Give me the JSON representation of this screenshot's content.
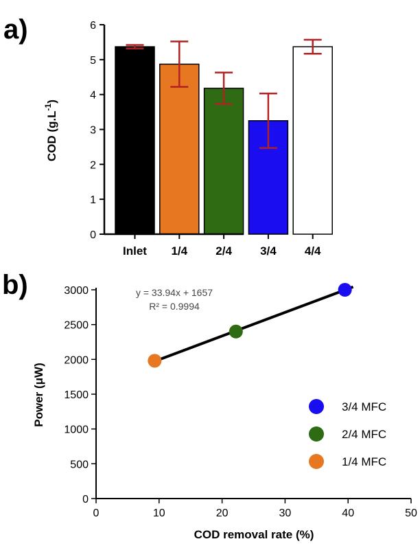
{
  "chart_data": [
    {
      "panel": "a)",
      "type": "bar",
      "title": "",
      "xlabel": "",
      "ylabel": "COD (g.L",
      "ylabel_sup": "-1",
      "ylabel_close": ")",
      "ylim": [
        0,
        6
      ],
      "yticks": [
        0,
        1,
        2,
        3,
        4,
        5,
        6
      ],
      "categories": [
        "Inlet",
        "1/4",
        "2/4",
        "3/4",
        "4/4"
      ],
      "values": [
        5.37,
        4.87,
        4.18,
        3.25,
        5.37
      ],
      "errors": [
        0.05,
        0.65,
        0.45,
        0.78,
        0.2
      ],
      "colors": [
        "#000000",
        "#e87722",
        "#2e6b12",
        "#1a0df0",
        "#ffffff"
      ],
      "error_color": "#b22222"
    },
    {
      "panel": "b)",
      "type": "scatter",
      "title": "",
      "xlabel": "COD removal rate  (%)",
      "ylabel": "Power (μW)",
      "xlim": [
        0,
        50
      ],
      "ylim": [
        0,
        3000
      ],
      "xticks": [
        0,
        10,
        20,
        30,
        40,
        50
      ],
      "yticks": [
        0,
        500,
        1000,
        1500,
        2000,
        2500,
        3000
      ],
      "series": [
        {
          "name": "3/4 MFC",
          "color": "#1a0df0",
          "x": [
            39.5
          ],
          "y": [
            3000
          ]
        },
        {
          "name": "2/4 MFC",
          "color": "#2e6b12",
          "x": [
            22.2
          ],
          "y": [
            2400
          ]
        },
        {
          "name": "1/4 MFC",
          "color": "#e87722",
          "x": [
            9.3
          ],
          "y": [
            1980
          ]
        }
      ],
      "fit": {
        "slope": 33.94,
        "intercept": 1657,
        "x_range": [
          8.6,
          40.8
        ]
      },
      "equation": "y = 33.94x + 1657",
      "r_squared": "R² = 0.9994",
      "legend_position": "bottom-right"
    }
  ]
}
